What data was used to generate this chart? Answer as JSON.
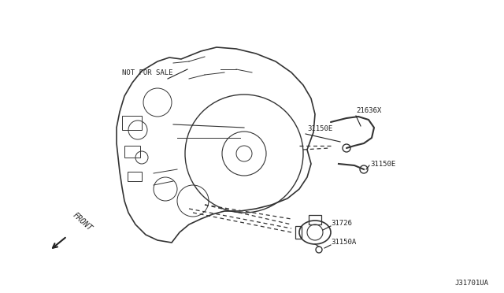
{
  "title": "",
  "background_color": "#ffffff",
  "fig_width": 6.4,
  "fig_height": 3.72,
  "labels": {
    "not_for_sale": "NOT FOR SALE",
    "part_21636x": "21636X",
    "part_31150e_top": "31150E",
    "part_31150e_mid": "31150E",
    "part_31726": "31726",
    "part_31150a": "31150A",
    "front": "FRONT",
    "diagram_id": "J31701UA"
  },
  "text_color": "#222222",
  "line_color": "#333333",
  "font_size_label": 6.5,
  "font_size_id": 7.0
}
